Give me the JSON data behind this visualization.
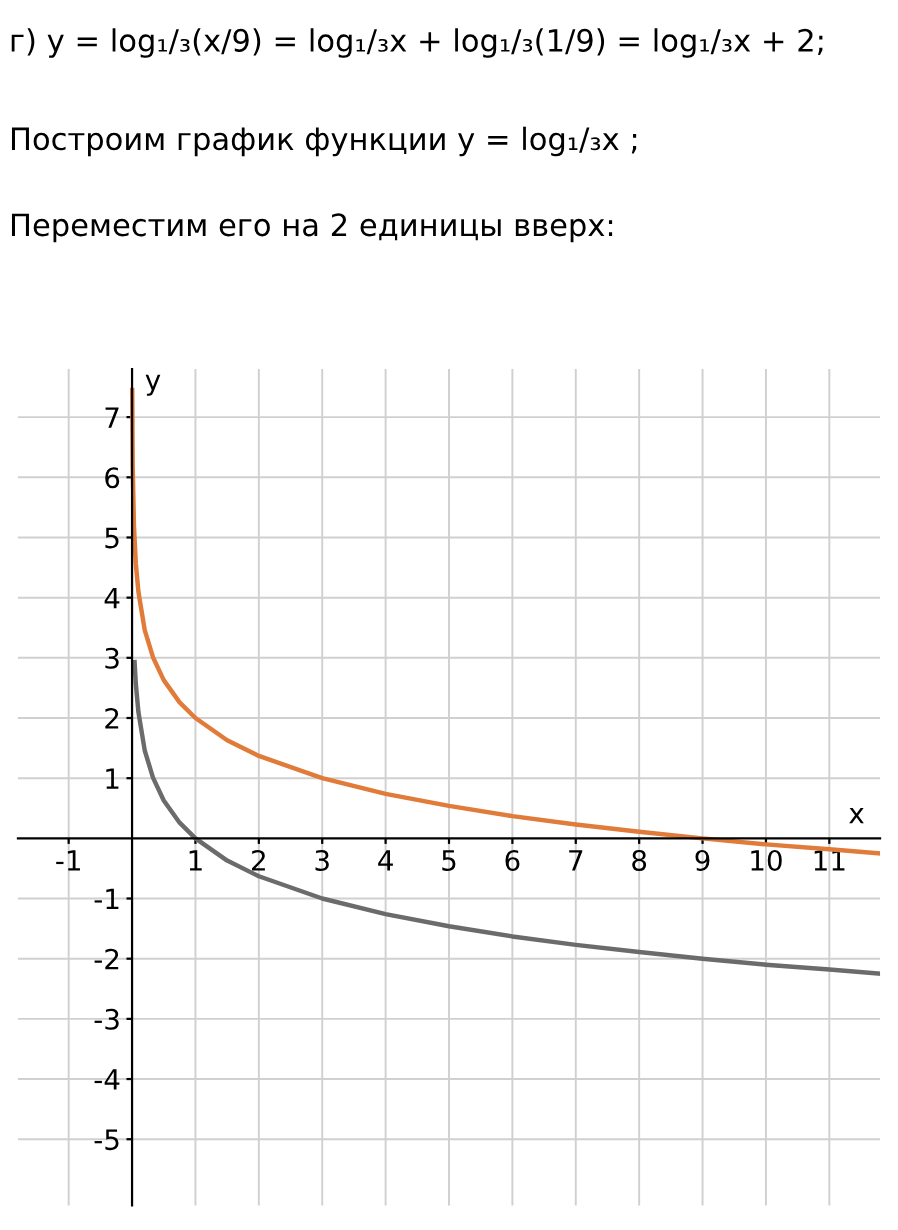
{
  "chart_data": {
    "type": "line",
    "xlabel": "x",
    "ylabel": "y",
    "annotations": [
      "г) y = log₁/₃(x/9) = log₁/₃x + log₁/₃(1/9) = log₁/₃x + 2;",
      "Построим график функции y = log₁/₃x ;",
      "Переместим его на 2 единицы вверх:"
    ],
    "series": [
      {
        "color": "#6b6b6b",
        "x": [
          0.04,
          0.06,
          0.1,
          0.2,
          0.33,
          0.5,
          0.75,
          1,
          1.5,
          2,
          3,
          4,
          5,
          6,
          7,
          8,
          9,
          10,
          11,
          11.8
        ],
        "values": [
          2.93,
          2.56,
          2.1,
          1.46,
          1.01,
          0.63,
          0.26,
          0,
          -0.37,
          -0.63,
          -1,
          -1.26,
          -1.46,
          -1.63,
          -1.77,
          -1.89,
          -2,
          -2.1,
          -2.18,
          -2.25
        ]
      },
      {
        "color": "#e07b39",
        "x": [
          0.0025,
          0.01,
          0.03,
          0.06,
          0.1,
          0.2,
          0.33,
          0.5,
          0.75,
          1,
          1.5,
          2,
          3,
          4,
          5,
          6,
          7,
          8,
          9,
          10,
          11,
          11.8
        ],
        "values": [
          7.45,
          6.19,
          5.19,
          4.56,
          4.1,
          3.46,
          3.01,
          2.63,
          2.26,
          2,
          1.63,
          1.37,
          1,
          0.74,
          0.54,
          0.37,
          0.23,
          0.11,
          0,
          -0.1,
          -0.18,
          -0.25
        ]
      }
    ],
    "xlim": [
      -1.8,
      11.8
    ],
    "ylim": [
      -6.1,
      7.8
    ],
    "xticks": [
      -1,
      1,
      2,
      3,
      4,
      5,
      6,
      7,
      8,
      9,
      10,
      11
    ],
    "yticks": [
      -5,
      -4,
      -3,
      -2,
      -1,
      1,
      2,
      3,
      4,
      5,
      6,
      7
    ],
    "grid": true,
    "marker": "none",
    "line_style": "solid"
  }
}
